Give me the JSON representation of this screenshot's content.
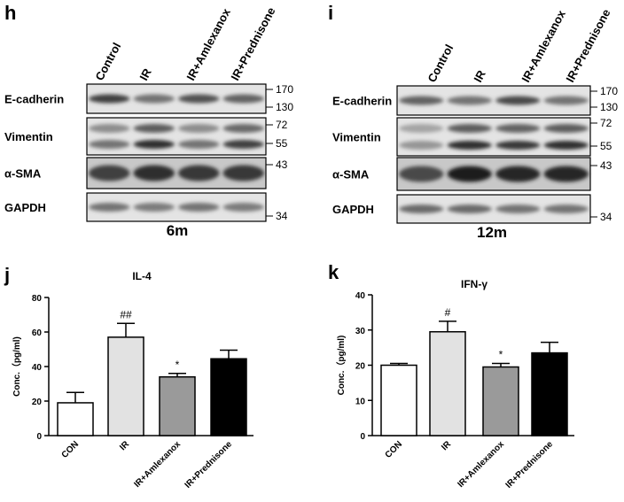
{
  "blots": [
    {
      "label": "h",
      "lanes": [
        "Control",
        "IR",
        "IR+Amlexanox",
        "IR+Prednisone"
      ],
      "rows": [
        "E-cadherin",
        "Vimentin",
        "α-SMA",
        "GAPDH"
      ],
      "markers": [
        "170",
        "130",
        "72",
        "55",
        "43",
        "34"
      ],
      "time": "6m"
    },
    {
      "label": "i",
      "lanes": [
        "Control",
        "IR",
        "IR+Amlexanox",
        "IR+Prednisone"
      ],
      "rows": [
        "E-cadherin",
        "Vimentin",
        "α-SMA",
        "GAPDH"
      ],
      "markers": [
        "170",
        "130",
        "72",
        "55",
        "43",
        "34"
      ],
      "time": "12m"
    }
  ],
  "chart_data": [
    {
      "type": "bar",
      "label": "j",
      "title": "IL-4",
      "y_label": "Conc.（pg/ml)",
      "categories": [
        "CON",
        "IR",
        "IR+Amlexanox",
        "IR+Prednisone"
      ],
      "values": [
        19,
        57,
        34,
        44.5
      ],
      "errors": [
        6,
        8,
        2,
        5
      ],
      "colors": [
        "#ffffff",
        "#e2e2e2",
        "#9a9a9a",
        "#000000"
      ],
      "annotations": [
        null,
        "##",
        "*",
        null
      ],
      "ylim": [
        0,
        80
      ],
      "yticks": [
        0,
        20,
        40,
        60,
        80
      ]
    },
    {
      "type": "bar",
      "label": "k",
      "title": "IFN-γ",
      "y_label": "Conc.（pg/ml)",
      "categories": [
        "CON",
        "IR",
        "IR+Amlexanox",
        "IR+Prednisone"
      ],
      "values": [
        20,
        29.5,
        19.5,
        23.5
      ],
      "errors": [
        0.5,
        3,
        1,
        3
      ],
      "colors": [
        "#ffffff",
        "#e2e2e2",
        "#9a9a9a",
        "#000000"
      ],
      "annotations": [
        null,
        "#",
        "*",
        null
      ],
      "ylim": [
        0,
        40
      ],
      "yticks": [
        0,
        10,
        20,
        30,
        40
      ]
    }
  ]
}
